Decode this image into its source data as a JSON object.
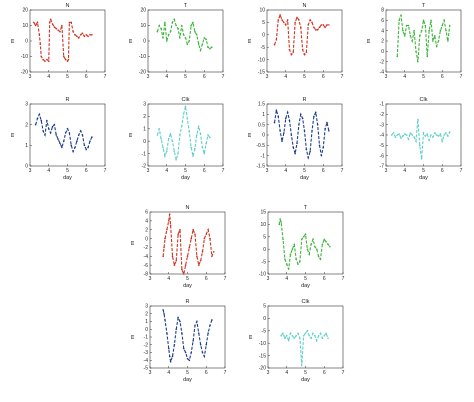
{
  "chart_data": [
    {
      "type": "scatter",
      "title": "N",
      "xlabel": "",
      "ylabel": "m",
      "xlim": [
        3,
        7
      ],
      "ylim": [
        -20,
        20
      ],
      "xticks": [
        "3",
        "4",
        "5",
        "6",
        "7"
      ],
      "yticks": [
        "-20",
        "-10",
        "0",
        "10",
        "20"
      ],
      "color": "#d03020",
      "series": [
        {
          "x": [
            3.2,
            3.3,
            3.35,
            3.4,
            3.5,
            3.55,
            3.6,
            3.7,
            3.8,
            3.9,
            4.0,
            4.05,
            4.1,
            4.2,
            4.3,
            4.4,
            4.5,
            4.6,
            4.7,
            4.8,
            4.9,
            5.0,
            5.05,
            5.1,
            5.2,
            5.3,
            5.4,
            5.5,
            5.6,
            5.7,
            5.8,
            5.9,
            6.0,
            6.1,
            6.2,
            6.3
          ],
          "y": [
            12,
            10,
            11,
            12,
            4,
            -2,
            -10,
            -12,
            -13,
            -12,
            -13,
            12,
            14,
            11,
            9,
            8,
            7,
            6,
            10,
            -10,
            -12,
            -13,
            -12,
            12,
            12,
            6,
            4,
            3,
            2,
            4,
            5,
            3,
            4,
            3,
            4,
            4
          ]
        }
      ]
    },
    {
      "type": "scatter",
      "title": "T",
      "xlabel": "",
      "ylabel": "m",
      "xlim": [
        3,
        7
      ],
      "ylim": [
        -20,
        20
      ],
      "xticks": [
        "3",
        "4",
        "5",
        "6",
        "7"
      ],
      "yticks": [
        "-20",
        "-10",
        "0",
        "10",
        "20"
      ],
      "color": "#3cb43c",
      "series": [
        {
          "x": [
            3.5,
            3.6,
            3.7,
            3.8,
            3.9,
            4.0,
            4.1,
            4.2,
            4.3,
            4.4,
            4.5,
            4.6,
            4.7,
            4.8,
            4.9,
            5.0,
            5.1,
            5.2,
            5.3,
            5.4,
            5.5,
            5.6,
            5.7,
            5.8,
            5.9,
            6.0,
            6.1,
            6.2,
            6.3,
            6.4
          ],
          "y": [
            6,
            10,
            8,
            2,
            12,
            0,
            4,
            6,
            12,
            14,
            10,
            8,
            2,
            10,
            4,
            2,
            -2,
            0,
            10,
            12,
            6,
            4,
            -2,
            -6,
            -2,
            2,
            1,
            -4,
            -5,
            -4
          ]
        }
      ]
    },
    {
      "type": "scatter",
      "title": "N",
      "xlabel": "",
      "ylabel": "m",
      "xlim": [
        3,
        7
      ],
      "ylim": [
        -15,
        10
      ],
      "xticks": [
        "3",
        "4",
        "5",
        "6",
        "7"
      ],
      "yticks": [
        "-15",
        "-10",
        "-5",
        "0",
        "5",
        "10"
      ],
      "color": "#d03020",
      "series": [
        {
          "x": [
            3.4,
            3.5,
            3.6,
            3.7,
            3.8,
            3.9,
            4.0,
            4.1,
            4.2,
            4.3,
            4.4,
            4.5,
            4.6,
            4.7,
            4.8,
            4.9,
            5.0,
            5.1,
            5.2,
            5.3,
            5.4,
            5.5,
            5.6,
            5.7,
            5.8,
            5.9,
            6.0,
            6.1,
            6.2,
            6.3
          ],
          "y": [
            -4,
            -2,
            6,
            8,
            6,
            5,
            4,
            6,
            -6,
            -8,
            -7,
            5,
            7,
            6,
            3,
            -6,
            -8,
            -7,
            4,
            6,
            5,
            3,
            2,
            2,
            3,
            4,
            4,
            3,
            4,
            4
          ]
        }
      ]
    },
    {
      "type": "scatter",
      "title": "T",
      "xlabel": "",
      "ylabel": "m",
      "xlim": [
        3,
        7
      ],
      "ylim": [
        -4,
        8
      ],
      "xticks": [
        "3",
        "4",
        "5",
        "6",
        "7"
      ],
      "yticks": [
        "-4",
        "-2",
        "0",
        "2",
        "4",
        "6",
        "8"
      ],
      "color": "#3cb43c",
      "series": [
        {
          "x": [
            3.6,
            3.7,
            3.8,
            3.9,
            4.0,
            4.1,
            4.2,
            4.3,
            4.4,
            4.5,
            4.6,
            4.7,
            4.8,
            4.9,
            5.0,
            5.1,
            5.2,
            5.3,
            5.4,
            5.5,
            5.6,
            5.7,
            5.8,
            5.9,
            6.0,
            6.1,
            6.2,
            6.3,
            6.4
          ],
          "y": [
            -1,
            6,
            7,
            4,
            3,
            5,
            5,
            3,
            2,
            4,
            0,
            -2,
            3,
            4,
            6,
            5,
            -1,
            4,
            6,
            2,
            3,
            1,
            2,
            4,
            5,
            6,
            4,
            2,
            5
          ]
        }
      ]
    },
    {
      "type": "scatter",
      "title": "R",
      "xlabel": "day",
      "ylabel": "m",
      "xlim": [
        3,
        7
      ],
      "ylim": [
        0,
        3
      ],
      "xticks": [
        "3",
        "4",
        "5",
        "6",
        "7"
      ],
      "yticks": [
        "0",
        "1",
        "2",
        "3"
      ],
      "color": "#1c3c8c",
      "series": [
        {
          "x": [
            3.3,
            3.4,
            3.5,
            3.6,
            3.7,
            3.8,
            3.9,
            4.0,
            4.1,
            4.2,
            4.3,
            4.4,
            4.5,
            4.6,
            4.7,
            4.8,
            4.9,
            5.0,
            5.1,
            5.2,
            5.3,
            5.4,
            5.5,
            5.6,
            5.7,
            5.8,
            5.9,
            6.0,
            6.1,
            6.2,
            6.3
          ],
          "y": [
            2.0,
            2.3,
            2.5,
            2.2,
            1.7,
            1.5,
            2.2,
            1.8,
            1.6,
            1.9,
            2.0,
            1.5,
            1.3,
            1.1,
            0.9,
            1.2,
            1.6,
            1.8,
            1.6,
            1.0,
            0.7,
            0.9,
            1.2,
            1.5,
            1.7,
            1.5,
            1.0,
            0.8,
            0.9,
            1.2,
            1.4
          ]
        }
      ]
    },
    {
      "type": "scatter",
      "title": "Clk",
      "xlabel": "day",
      "ylabel": "m",
      "xlim": [
        3,
        7
      ],
      "ylim": [
        -2,
        3
      ],
      "xticks": [
        "3",
        "4",
        "5",
        "6",
        "7"
      ],
      "yticks": [
        "-2",
        "-1",
        "0",
        "1",
        "2",
        "3"
      ],
      "color": "#5fd0c8",
      "series": [
        {
          "x": [
            3.5,
            3.6,
            3.7,
            3.8,
            3.9,
            4.0,
            4.1,
            4.2,
            4.3,
            4.4,
            4.5,
            4.6,
            4.7,
            4.8,
            4.9,
            5.0,
            5.1,
            5.2,
            5.3,
            5.4,
            5.5,
            5.6,
            5.7,
            5.8,
            5.9,
            6.0,
            6.1,
            6.2,
            6.3
          ],
          "y": [
            0.5,
            1.0,
            0.2,
            -0.5,
            -1.2,
            -0.8,
            0.2,
            0.6,
            0.0,
            -0.8,
            -1.5,
            -1.0,
            0.5,
            1.2,
            2.2,
            2.8,
            1.8,
            0.8,
            -0.5,
            -1.2,
            -0.6,
            0.5,
            1.2,
            0.6,
            -0.5,
            -1.0,
            -0.2,
            0.5,
            0.3
          ]
        }
      ]
    },
    {
      "type": "scatter",
      "title": "R",
      "xlabel": "day",
      "ylabel": "m",
      "xlim": [
        3,
        7
      ],
      "ylim": [
        -1.5,
        1.5
      ],
      "xticks": [
        "3",
        "4",
        "5",
        "6",
        "7"
      ],
      "yticks": [
        "-1.5",
        "-1",
        "-0.5",
        "0",
        "0.5",
        "1",
        "1.5"
      ],
      "color": "#1c3c8c",
      "series": [
        {
          "x": [
            3.4,
            3.5,
            3.6,
            3.7,
            3.8,
            3.9,
            4.0,
            4.1,
            4.2,
            4.3,
            4.4,
            4.5,
            4.6,
            4.7,
            4.8,
            4.9,
            5.0,
            5.1,
            5.2,
            5.3,
            5.4,
            5.5,
            5.6,
            5.7,
            5.8,
            5.9,
            6.0,
            6.1,
            6.2,
            6.3
          ],
          "y": [
            0.6,
            1.2,
            0.9,
            0.2,
            -0.3,
            0.1,
            0.8,
            1.1,
            0.7,
            0.0,
            -0.6,
            -0.9,
            -0.4,
            0.5,
            1.0,
            0.8,
            0.2,
            -0.7,
            -1.1,
            -0.8,
            0.2,
            0.9,
            1.1,
            0.5,
            -0.5,
            -1.0,
            -0.6,
            0.3,
            0.6,
            0.2
          ]
        }
      ]
    },
    {
      "type": "scatter",
      "title": "Clk",
      "xlabel": "day",
      "ylabel": "",
      "xlim": [
        3,
        7
      ],
      "ylim": [
        -7,
        -1
      ],
      "xticks": [
        "3",
        "4",
        "5",
        "6",
        "7"
      ],
      "yticks": [
        "-7",
        "-6",
        "-5",
        "-4",
        "-3",
        "-2",
        "-1"
      ],
      "color": "#5fd0c8",
      "series": [
        {
          "x": [
            3.3,
            3.4,
            3.5,
            3.6,
            3.7,
            3.8,
            3.9,
            4.0,
            4.1,
            4.2,
            4.3,
            4.4,
            4.5,
            4.6,
            4.7,
            4.8,
            4.9,
            5.0,
            5.1,
            5.2,
            5.3,
            5.4,
            5.5,
            5.6,
            5.7,
            5.8,
            5.9,
            6.0,
            6.1,
            6.2,
            6.3,
            6.4
          ],
          "y": [
            -4.0,
            -3.8,
            -4.2,
            -4.0,
            -3.9,
            -4.3,
            -4.1,
            -3.9,
            -4.0,
            -4.4,
            -3.8,
            -4.0,
            -4.2,
            -4.6,
            -2.5,
            -5.0,
            -6.3,
            -3.8,
            -4.1,
            -3.9,
            -4.5,
            -4.0,
            -4.2,
            -3.8,
            -4.0,
            -4.1,
            -3.9,
            -4.6,
            -4.0,
            -3.8,
            -4.1,
            -3.7
          ]
        }
      ]
    },
    {
      "type": "scatter",
      "title": "N",
      "xlabel": "day",
      "ylabel": "m",
      "xlim": [
        3,
        7
      ],
      "ylim": [
        -8,
        6
      ],
      "xticks": [
        "3",
        "4",
        "5",
        "6",
        "7"
      ],
      "yticks": [
        "-8",
        "-6",
        "-4",
        "-2",
        "0",
        "2",
        "4",
        "6"
      ],
      "color": "#d03020",
      "series": [
        {
          "x": [
            3.7,
            3.75,
            3.8,
            3.9,
            4.0,
            4.05,
            4.1,
            4.2,
            4.3,
            4.4,
            4.5,
            4.6,
            4.7,
            4.8,
            4.9,
            5.0,
            5.1,
            5.2,
            5.3,
            5.4,
            5.5,
            5.6,
            5.7,
            5.8,
            5.9,
            6.0,
            6.1,
            6.2,
            6.3,
            6.4
          ],
          "y": [
            -4,
            -2,
            0,
            2,
            4,
            5.5,
            3,
            -4,
            -6,
            -5,
            1,
            2,
            -7,
            -8,
            -6,
            -4,
            -2,
            0,
            2,
            1,
            -4,
            -6,
            -5,
            -3,
            0,
            1,
            2,
            0,
            -4,
            -3
          ]
        }
      ]
    },
    {
      "type": "scatter",
      "title": "T",
      "xlabel": "day",
      "ylabel": "",
      "xlim": [
        3,
        7
      ],
      "ylim": [
        -10,
        15
      ],
      "xticks": [
        "3",
        "4",
        "5",
        "6",
        "7"
      ],
      "yticks": [
        "-10",
        "-5",
        "0",
        "5",
        "10",
        "15"
      ],
      "color": "#3cb43c",
      "series": [
        {
          "x": [
            3.6,
            3.65,
            3.7,
            3.8,
            3.9,
            4.0,
            4.1,
            4.2,
            4.3,
            4.4,
            4.5,
            4.6,
            4.7,
            4.8,
            4.9,
            5.0,
            5.1,
            5.2,
            5.3,
            5.4,
            5.5,
            5.6,
            5.7,
            5.8,
            5.9,
            6.0,
            6.1,
            6.2,
            6.3
          ],
          "y": [
            10,
            12,
            11,
            4,
            -4,
            -6,
            -8,
            -2,
            0,
            2,
            -4,
            -6,
            -5,
            4,
            5,
            6,
            0,
            -2,
            2,
            4,
            1,
            0,
            -3,
            -4,
            2,
            4,
            3,
            2,
            1
          ]
        }
      ]
    },
    {
      "type": "scatter",
      "title": "R",
      "xlabel": "day",
      "ylabel": "m",
      "xlim": [
        3,
        7
      ],
      "ylim": [
        -5,
        3
      ],
      "xticks": [
        "3",
        "4",
        "5",
        "6",
        "7"
      ],
      "yticks": [
        "-5",
        "-4",
        "-3",
        "-2",
        "-1",
        "0",
        "1",
        "2",
        "3"
      ],
      "color": "#1c3c8c",
      "series": [
        {
          "x": [
            3.7,
            3.75,
            3.8,
            3.9,
            4.0,
            4.05,
            4.1,
            4.2,
            4.3,
            4.4,
            4.5,
            4.6,
            4.7,
            4.8,
            4.9,
            5.0,
            5.1,
            5.2,
            5.3,
            5.4,
            5.5,
            5.6,
            5.7,
            5.8,
            5.9,
            6.0,
            6.1,
            6.2,
            6.3
          ],
          "y": [
            2.5,
            2.0,
            1.2,
            -0.5,
            -2.5,
            -3.5,
            -4.2,
            -3.5,
            -2.0,
            0.0,
            1.5,
            1.0,
            -0.5,
            -2.5,
            -3.0,
            -3.8,
            -4.0,
            -3.0,
            -1.5,
            0.5,
            1.0,
            -0.5,
            -2.0,
            -3.0,
            -3.5,
            -2.0,
            -0.5,
            0.5,
            1.2
          ]
        }
      ]
    },
    {
      "type": "scatter",
      "title": "Clk",
      "xlabel": "day",
      "ylabel": "m",
      "xlim": [
        3,
        7
      ],
      "ylim": [
        -20,
        5
      ],
      "xticks": [
        "3",
        "4",
        "5",
        "6",
        "7"
      ],
      "yticks": [
        "-20",
        "-15",
        "-10",
        "-5",
        "0",
        "5"
      ],
      "color": "#5fd0c8",
      "series": [
        {
          "x": [
            3.7,
            3.8,
            3.9,
            4.0,
            4.1,
            4.2,
            4.3,
            4.4,
            4.5,
            4.6,
            4.7,
            4.8,
            4.9,
            5.0,
            5.1,
            5.2,
            5.3,
            5.4,
            5.5,
            5.6,
            5.7,
            5.8,
            5.9,
            6.0,
            6.1,
            6.2
          ],
          "y": [
            -7,
            -6,
            -8,
            -7,
            -9,
            -6,
            -7,
            -8,
            -7,
            -6,
            -8,
            -19,
            -7,
            -6,
            -5,
            -7,
            -8,
            -6,
            -7,
            -9,
            -7,
            -6,
            -8,
            -7,
            -6,
            -8
          ]
        }
      ]
    }
  ]
}
